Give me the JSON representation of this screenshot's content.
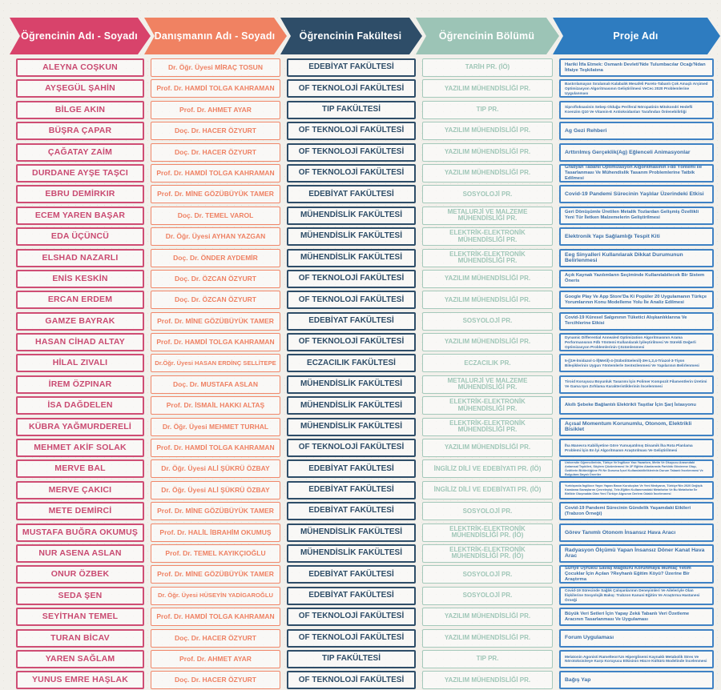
{
  "header": {
    "columns": [
      {
        "label": "Öğrencinin Adı - Soyadı",
        "color": "#d8436b"
      },
      {
        "label": "Danışmanın Adı - Soyadı",
        "color": "#f08262"
      },
      {
        "label": "Öğrencinin Fakültesi",
        "color": "#2e4d68"
      },
      {
        "label": "Öğrencinin Bölümü",
        "color": "#9cc4b6"
      },
      {
        "label": "Proje Adı",
        "color": "#2e7cc0"
      }
    ]
  },
  "colors": {
    "student_accent": "#cf4d74",
    "advisor_accent": "#f0876a",
    "faculty_accent": "#2e4d68",
    "department_accent": "#a5c9bb",
    "project_accent": "#3f82c4"
  },
  "rows": [
    {
      "student": "ALEYNA COŞKUN",
      "advisor": "Dr. Öğr. Üyesi MİRAÇ TOSUN",
      "faculty": "EDEBİYAT FAKÜLTESİ",
      "department": "TARİH PR. (İÖ)",
      "project": "Hariki İtfa Etmek: Osmanlı Devleti'Nde Tulumbacılar Ocağı'Ndan İtfaiye Teşkilatına"
    },
    {
      "student": "AYŞEGÜL ŞAHİN",
      "advisor": "Prof. Dr. HAMDİ TOLGA KAHRAMAN",
      "faculty": "OF TEKNOLOJİ FAKÜLTESİ",
      "department": "YAZILIM MÜHENDİSLİĞİ PR.",
      "project": "Bastırılamayan Sıralamalı Kalabalık Mesafeli Pareto-Tabanlı Çok Amaçlı Arşimed Optimizasyon Algoritmasının Geliştirilmesi VeCec 2020 Problemlerine Uygulanması"
    },
    {
      "student": "BİLGE AKIN",
      "advisor": "Prof. Dr. AHMET AYAR",
      "faculty": "TIP FAKÜLTESİ",
      "department": "TIP PR.",
      "project": "Siprofloksasinin Sebep Olduğu Periferal Nöropatinin Mitokondri Hedefli Koenzim Q10 Ve Vitamin-E Antioksidanları Tarafından Önlenebilirliği"
    },
    {
      "student": "BÜŞRA ÇAPAR",
      "advisor": "Doç. Dr. HACER ÖZYURT",
      "faculty": "OF TEKNOLOJİ FAKÜLTESİ",
      "department": "YAZILIM MÜHENDİSLİĞİ PR.",
      "project": "Ag Gezi Rehberi"
    },
    {
      "student": "ÇAĞATAY ZAİM",
      "advisor": "Doç. Dr. HACER ÖZYURT",
      "faculty": "OF TEKNOLOJİ FAKÜLTESİ",
      "department": "YAZILIM MÜHENDİSLİĞİ PR.",
      "project": "Arttırılmış Gerçeklik(Ag) Eğlenceli Animasyonlar"
    },
    {
      "student": "DURDANE AYŞE TAŞCI",
      "advisor": "Prof. Dr. HAMDİ TOLGA KAHRAMAN",
      "faculty": "OF TEKNOLOJİ FAKÜLTESİ",
      "department": "YAZILIM MÜHENDİSLİĞİ PR.",
      "project": "Gradyan Tabanlı Optimizasyon Algoritmasının Fdb Yöntemi İle Tasarlanması Ve Mühendislik Tasarım Problemlerine Tatbik Edilmesi"
    },
    {
      "student": "EBRU DEMİRKIR",
      "advisor": "Prof. Dr. MİNE GÖZÜBÜYÜK TAMER",
      "faculty": "EDEBİYAT FAKÜLTESİ",
      "department": "SOSYOLOJİ PR.",
      "project": "Covid-19 Pandemi Sürecinin Yaşlılar Üzerindeki Etkisi"
    },
    {
      "student": "ECEM YAREN BAŞAR",
      "advisor": "Doç. Dr. TEMEL VAROL",
      "faculty": "MÜHENDİSLİK FAKÜLTESİ",
      "department": "METALURJİ VE MALZEME MÜHENDİSLİĞİ PR.",
      "project": "Geri Dönüşümle Üretilen Metalik Tozlardan Gelişmiş Özellikli Yeni Tür İletken Malzemelerin Geliştirilmesi"
    },
    {
      "student": "EDA ÜÇÜNCÜ",
      "advisor": "Dr. Öğr. Üyesi AYHAN YAZGAN",
      "faculty": "MÜHENDİSLİK FAKÜLTESİ",
      "department": "ELEKTRİK-ELEKTRONİK MÜHENDİSLİĞİ PR.",
      "project": "Elektronik Yapı Sağlamlığı Tespit Kiti"
    },
    {
      "student": "ELSHAD NAZARLI",
      "advisor": "Doç. Dr. ÖNDER AYDEMİR",
      "faculty": "MÜHENDİSLİK FAKÜLTESİ",
      "department": "ELEKTRİK-ELEKTRONİK MÜHENDİSLİĞİ PR.",
      "project": "Eeg Sinyalleri Kullanılarak Dikkat Durumunun Belirlenmesi"
    },
    {
      "student": "ENİS KESKİN",
      "advisor": "Doç. Dr. ÖZCAN ÖZYURT",
      "faculty": "OF TEKNOLOJİ FAKÜLTESİ",
      "department": "YAZILIM MÜHENDİSLİĞİ PR.",
      "project": "Açık Kaynak Yazılımların Seçiminde Kullanılabilecek Bir Sistem Öneris"
    },
    {
      "student": "ERCAN ERDEM",
      "advisor": "Doç. Dr. ÖZCAN ÖZYURT",
      "faculty": "OF TEKNOLOJİ FAKÜLTESİ",
      "department": "YAZILIM MÜHENDİSLİĞİ PR.",
      "project": "Google Play Ve App Store'Da Ki Popüler 20 Uygulamanın Türkçe Yorumlarının Konu Modelleme Yolu İle Analiz Edilmesi"
    },
    {
      "student": "GAMZE BAYRAK",
      "advisor": "Prof. Dr. MİNE GÖZÜBÜYÜK TAMER",
      "faculty": "EDEBİYAT FAKÜLTESİ",
      "department": "SOSYOLOJİ PR.",
      "project": "Covid-19 Küresel Salgınının Tüketici Alışkanlıklarına Ve Tercihlerine Etkisi"
    },
    {
      "student": "HASAN CİHAD ALTAY",
      "advisor": "Prof. Dr. HAMDİ TOLGA KAHRAMAN",
      "faculty": "OF TEKNOLOJİ FAKÜLTESİ",
      "department": "YAZILIM MÜHENDİSLİĞİ PR.",
      "project": "Dynamic Differential Annealed Optimization Algoritmasının Arama Performansının Fdb Yöntemi Kullanılarak İyileştirilmesi Ve Sürekli Değerli Optimizasyon Problemlerinin Çözümlenmesi"
    },
    {
      "student": "HİLAL ZIVALI",
      "advisor": "Dr.Öğr. Üyesi HASAN ERDİNÇ SELLİTEPE",
      "faculty": "ECZACILIK FAKÜLTESİ",
      "department": "ECZACILIK PR.",
      "project": "5-((1H-İmidazol-1-İl)Metil)-4-(Sübstitüelenil)-3H-1,2,4-Triazol-3-Tiyon Bileşiklerinin Uygun Yöntemlerle Sentezlenmesi Ve Yapılarının Belirlenmesi"
    },
    {
      "student": "İREM ÖZPINAR",
      "advisor": "Doç. Dr. MUSTAFA ASLAN",
      "faculty": "MÜHENDİSLİK FAKÜLTESİ",
      "department": "METALURJİ VE MALZEME MÜHENDİSLİĞİ PR.",
      "project": "Tiroid Koruyucu Boyunluk Tasarımı İçin Polimer Kompozit Filamentlerin Üretimi Ve Gama Işın Zırhlama Karakteristiklerinin İncelenmesi"
    },
    {
      "student": "İSA DAĞDELEN",
      "advisor": "Prof. Dr. İSMAİL HAKKI ALTAŞ",
      "faculty": "MÜHENDİSLİK FAKÜLTESİ",
      "department": "ELEKTRİK-ELEKTRONİK MÜHENDİSLİĞİ PR.",
      "project": "Akıllı Şebeke Bağlantılı Elektrikli Taşıtlar İçin Şarj İstasyonu"
    },
    {
      "student": "KÜBRA YAĞMURDERELİ",
      "advisor": "Dr. Öğr. Üyesi MEHMET TURHAL",
      "faculty": "MÜHENDİSLİK FAKÜLTESİ",
      "department": "ELEKTRİK-ELEKTRONİK MÜHENDİSLİĞİ PR.",
      "project": "Açısal Momentum Korunumlu, Otonom, Elektrikli Bisiklet"
    },
    {
      "student": "MEHMET AKİF SOLAK",
      "advisor": "Prof. Dr. HAMDİ TOLGA KAHRAMAN",
      "faculty": "OF TEKNOLOJİ FAKÜLTESİ",
      "department": "YAZILIM MÜHENDİSLİĞİ PR.",
      "project": "İha Manevra Kabiliyetine Göre Yumuşatılmış Dinamik İha Rota Planlama Problemi İçin En İyi Algoritmanın Araştırılması Ve Geliştirilmesi"
    },
    {
      "student": "MERVE BAL",
      "advisor": "Dr. Öğr. Üyesi ALİ ŞÜKRÜ ÖZBAY",
      "faculty": "EDEBİYAT FAKÜLTESİ",
      "department": "İNGİLİZ DİLİ VE EDEBİYATI PR. (İÖ)",
      "project": "Üniversite Öğrencilerinin, Türkçe Ve İngilizce Yazı Yazarken, Metin Ve Okuyucu Arasındaki Anlamsal Tepkileri, Söylem Çözümlemesi Ve 2F Eğitim Alanlarında Farklılık Gösterme Olup, Özütlerin Bütünlüğüne Fit Ne Durumu İçsel Kullanılabilirliklerinin Durum Tabanlı İncelenmesi Ve Bulgulara Dayalı Öneriler"
    },
    {
      "student": "MERVE ÇAKICI",
      "advisor": "Dr. Öğr. Üyesi ALİ ŞÜKRÜ ÖZBAY",
      "faculty": "EDEBİYAT FAKÜLTESİ",
      "department": "İNGİLİZ DİLİ VE EDEBİYATI PR. (İÖ)",
      "project": "Yurtdışında İngilizce Yayın Yapan Basın Kuruluşları Ve Yeni Medyanın, Türkiye'Nin 2020 Değişik Karalama Savaşlarını Çevreleyişi, Tele-Eğitim Kullanımındaki Metaforlar Ve Bu Metaforlar İle Birlikte Oluşmakta Olan Yeni Türkiye Algısının Derlem Odaklı İncelenmesi"
    },
    {
      "student": "METE DEMİRCİ",
      "advisor": "Prof. Dr. MİNE GÖZÜBÜYÜK TAMER",
      "faculty": "EDEBİYAT FAKÜLTESİ",
      "department": "SOSYOLOJİ PR.",
      "project": "Covid-19 Pandemi Sürecinin Gündelik Yaşamdaki Etkileri (Trabzon Örneği)"
    },
    {
      "student": "MUSTAFA BUĞRA OKUMUŞ",
      "advisor": "Prof. Dr. HALİL İBRAHİM OKUMUŞ",
      "faculty": "MÜHENDİSLİK FAKÜLTESİ",
      "department": "ELEKTRİK-ELEKTRONİK MÜHENDİSLİĞİ PR. (İÖ)",
      "project": "Görev Tanımlı Otonom İnsansız Hava Aracı"
    },
    {
      "student": "NUR ASENA ASLAN",
      "advisor": "Prof. Dr. TEMEL KAYIKÇIOĞLU",
      "faculty": "MÜHENDİSLİK FAKÜLTESİ",
      "department": "ELEKTRİK-ELEKTRONİK MÜHENDİSLİĞİ PR. (İÖ)",
      "project": "Radyasyon Ölçümü Yapan İnsansız Döner Kanat Hava Arac"
    },
    {
      "student": "ONUR ÖZBEK",
      "advisor": "Prof. Dr. MİNE GÖZÜBÜYÜK TAMER",
      "faculty": "EDEBİYAT FAKÜLTESİ",
      "department": "SOSYOLOJİ PR.",
      "project": "Suriye Uyruklu Savaş Mağduru Korunmaya Muhtaç Yetim Çocuklar İçin Açılan ?Reyhanlı Eğitim Köyü? Üzerine Bir Araştırma"
    },
    {
      "student": "SEDA ŞEN",
      "advisor": "Dr. Öğr. Üyesi HÜSEYİN YADİGAROĞLU",
      "faculty": "EDEBİYAT FAKÜLTESİ",
      "department": "SOSYOLOJİ PR.",
      "project": "Covid-19 Sürecinde Sağlık Çalışanlarının Deneyimleri Ve Aileleriyle Olan İlişkilerine Sosyolojik Bakış: Trabzon Kanuni Eğitim Ve Araştırma Hastanesi Örneği"
    },
    {
      "student": "SEYİTHAN TEMEL",
      "advisor": "Prof. Dr. HAMDİ TOLGA KAHRAMAN",
      "faculty": "OF TEKNOLOJİ FAKÜLTESİ",
      "department": "YAZILIM MÜHENDİSLİĞİ PR.",
      "project": "Büyük Veri Setleri İçin Yapay Zekâ Tabanlı Veri Özetleme Aracının Tasarlanması Ve Uygulaması"
    },
    {
      "student": "TURAN BİCAV",
      "advisor": "Doç. Dr. HACER ÖZYURT",
      "faculty": "OF TEKNOLOJİ FAKÜLTESİ",
      "department": "YAZILIM MÜHENDİSLİĞİ PR.",
      "project": "Forum Uygulaması"
    },
    {
      "student": "YAREN SAĞLAM",
      "advisor": "Prof. Dr. AHMET AYAR",
      "faculty": "TIP FAKÜLTESİ",
      "department": "TIP PR.",
      "project": "Melatonin Agonisti Ramelteon'Un Hiperglisemi Kaynaklı Metabolik Stres Ve Nörotoksisiteye Karşı Koruyucu Etkisinin Hücre Kültürü Modelinde İncelenmesi"
    },
    {
      "student": "YUNUS EMRE HAŞLAK",
      "advisor": "Doç. Dr. HACER ÖZYURT",
      "faculty": "OF TEKNOLOJİ FAKÜLTESİ",
      "department": "YAZILIM MÜHENDİSLİĞİ PR.",
      "project": "Bağış Yap"
    }
  ]
}
